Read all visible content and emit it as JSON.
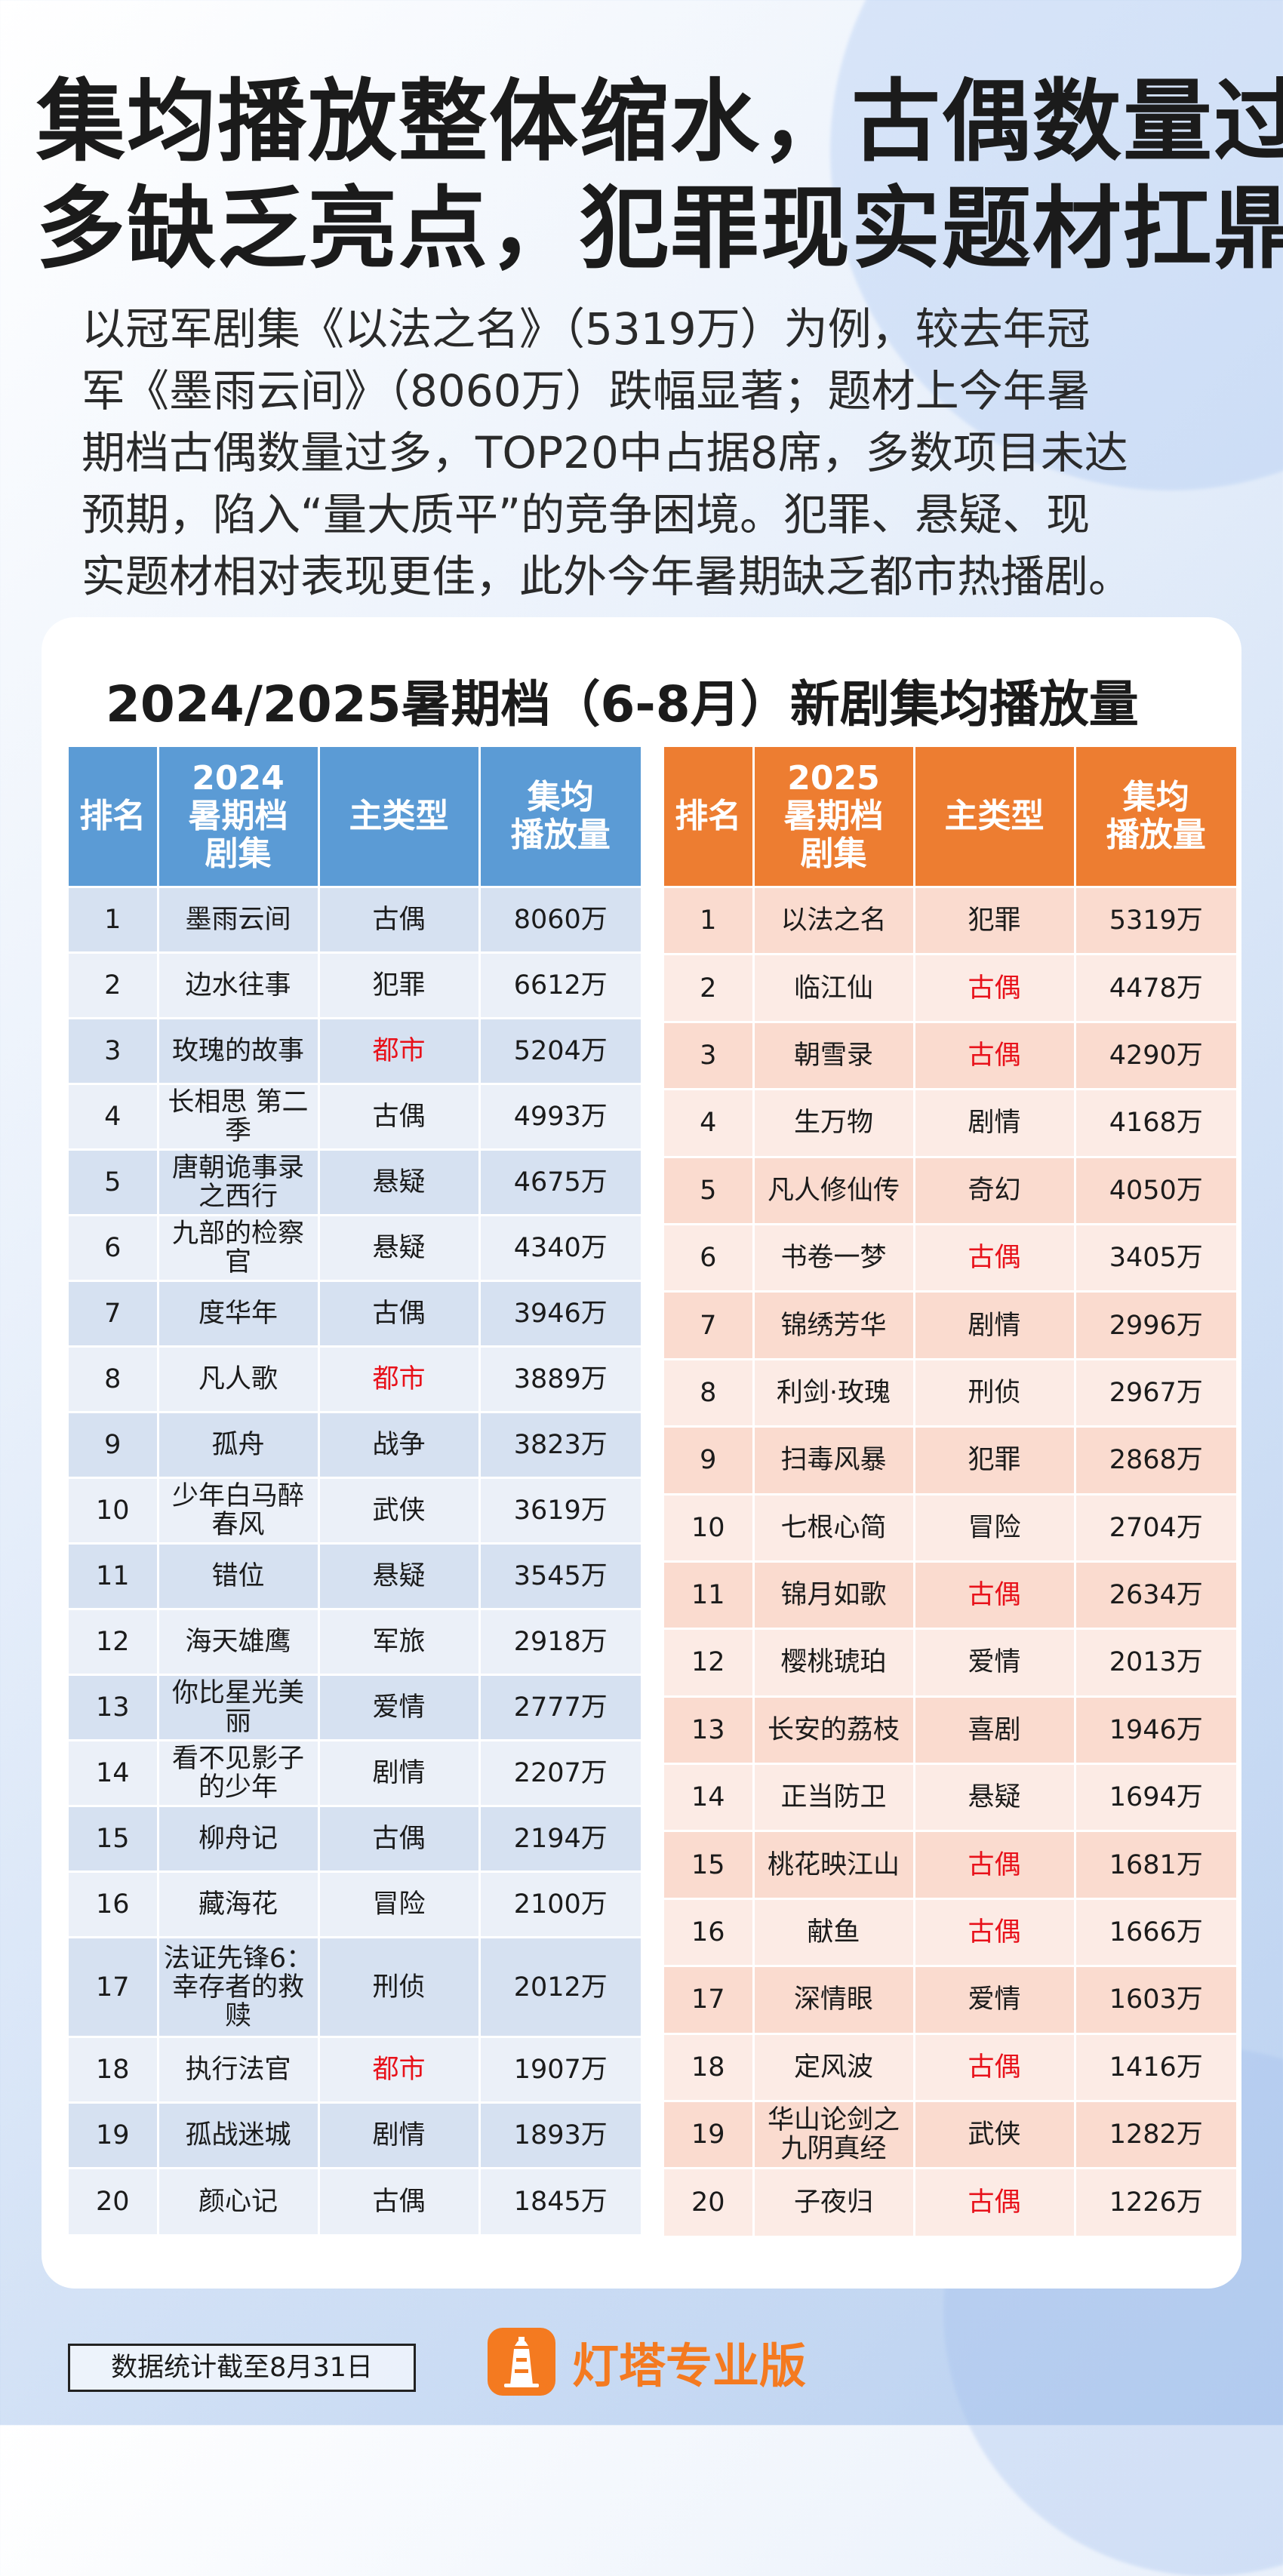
{
  "headline": [
    "集均播放整体缩水，古偶数量过",
    "多缺乏亮点，犯罪现实题材扛鼎"
  ],
  "intro": [
    "以冠军剧集《以法之名》（5319万）为例，较去年冠",
    "军《墨雨云间》（8060万）跌幅显著；题材上今年暑",
    "期档古偶数量过多，TOP20中占据8席，多数项目未达",
    "预期，陷入“量大质平”的竞争困境。犯罪、悬疑、现",
    "实题材相对表现更佳，此外今年暑期缺乏都市热播剧。"
  ],
  "card_title": "2024/2025暑期档（6-8月）新剧集均播放量",
  "colors": {
    "blue_header": "#5b9bd5",
    "orange_header": "#ed7d31",
    "highlight_red": "#e8111a",
    "brand_orange": "#f47a20"
  },
  "table_2024": {
    "headers": [
      "排名",
      "2024\n暑期档\n剧集",
      "主类型",
      "集均\n播放量"
    ],
    "rows": [
      {
        "rank": "1",
        "title": "墨雨云间",
        "genre": "古偶",
        "views": "8060万",
        "highlight": false
      },
      {
        "rank": "2",
        "title": "边水往事",
        "genre": "犯罪",
        "views": "6612万",
        "highlight": false
      },
      {
        "rank": "3",
        "title": "玫瑰的故事",
        "genre": "都市",
        "views": "5204万",
        "highlight": true
      },
      {
        "rank": "4",
        "title": "长相思 第二\n季",
        "genre": "古偶",
        "views": "4993万",
        "highlight": false
      },
      {
        "rank": "5",
        "title": "唐朝诡事录\n之西行",
        "genre": "悬疑",
        "views": "4675万",
        "highlight": false
      },
      {
        "rank": "6",
        "title": "九部的检察\n官",
        "genre": "悬疑",
        "views": "4340万",
        "highlight": false
      },
      {
        "rank": "7",
        "title": "度华年",
        "genre": "古偶",
        "views": "3946万",
        "highlight": false
      },
      {
        "rank": "8",
        "title": "凡人歌",
        "genre": "都市",
        "views": "3889万",
        "highlight": true
      },
      {
        "rank": "9",
        "title": "孤舟",
        "genre": "战争",
        "views": "3823万",
        "highlight": false
      },
      {
        "rank": "10",
        "title": "少年白马醉\n春风",
        "genre": "武侠",
        "views": "3619万",
        "highlight": false
      },
      {
        "rank": "11",
        "title": "错位",
        "genre": "悬疑",
        "views": "3545万",
        "highlight": false
      },
      {
        "rank": "12",
        "title": "海天雄鹰",
        "genre": "军旅",
        "views": "2918万",
        "highlight": false
      },
      {
        "rank": "13",
        "title": "你比星光美\n丽",
        "genre": "爱情",
        "views": "2777万",
        "highlight": false
      },
      {
        "rank": "14",
        "title": "看不见影子\n的少年",
        "genre": "剧情",
        "views": "2207万",
        "highlight": false
      },
      {
        "rank": "15",
        "title": "柳舟记",
        "genre": "古偶",
        "views": "2194万",
        "highlight": false
      },
      {
        "rank": "16",
        "title": "藏海花",
        "genre": "冒险",
        "views": "2100万",
        "highlight": false
      },
      {
        "rank": "17",
        "title": "法证先锋6：\n幸存者的救\n赎",
        "genre": "刑侦",
        "views": "2012万",
        "highlight": false,
        "tall": true
      },
      {
        "rank": "18",
        "title": "执行法官",
        "genre": "都市",
        "views": "1907万",
        "highlight": true
      },
      {
        "rank": "19",
        "title": "孤战迷城",
        "genre": "剧情",
        "views": "1893万",
        "highlight": false
      },
      {
        "rank": "20",
        "title": "颜心记",
        "genre": "古偶",
        "views": "1845万",
        "highlight": false
      }
    ]
  },
  "table_2025": {
    "headers": [
      "排名",
      "2025\n暑期档\n剧集",
      "主类型",
      "集均\n播放量"
    ],
    "rows": [
      {
        "rank": "1",
        "title": "以法之名",
        "genre": "犯罪",
        "views": "5319万",
        "highlight": false
      },
      {
        "rank": "2",
        "title": "临江仙",
        "genre": "古偶",
        "views": "4478万",
        "highlight": true
      },
      {
        "rank": "3",
        "title": "朝雪录",
        "genre": "古偶",
        "views": "4290万",
        "highlight": true
      },
      {
        "rank": "4",
        "title": "生万物",
        "genre": "剧情",
        "views": "4168万",
        "highlight": false
      },
      {
        "rank": "5",
        "title": "凡人修仙传",
        "genre": "奇幻",
        "views": "4050万",
        "highlight": false
      },
      {
        "rank": "6",
        "title": "书卷一梦",
        "genre": "古偶",
        "views": "3405万",
        "highlight": true
      },
      {
        "rank": "7",
        "title": "锦绣芳华",
        "genre": "剧情",
        "views": "2996万",
        "highlight": false
      },
      {
        "rank": "8",
        "title": "利剑·玫瑰",
        "genre": "刑侦",
        "views": "2967万",
        "highlight": false
      },
      {
        "rank": "9",
        "title": "扫毒风暴",
        "genre": "犯罪",
        "views": "2868万",
        "highlight": false
      },
      {
        "rank": "10",
        "title": "七根心简",
        "genre": "冒险",
        "views": "2704万",
        "highlight": false
      },
      {
        "rank": "11",
        "title": "锦月如歌",
        "genre": "古偶",
        "views": "2634万",
        "highlight": true
      },
      {
        "rank": "12",
        "title": "樱桃琥珀",
        "genre": "爱情",
        "views": "2013万",
        "highlight": false
      },
      {
        "rank": "13",
        "title": "长安的荔枝",
        "genre": "喜剧",
        "views": "1946万",
        "highlight": false
      },
      {
        "rank": "14",
        "title": "正当防卫",
        "genre": "悬疑",
        "views": "1694万",
        "highlight": false
      },
      {
        "rank": "15",
        "title": "桃花映江山",
        "genre": "古偶",
        "views": "1681万",
        "highlight": true
      },
      {
        "rank": "16",
        "title": "献鱼",
        "genre": "古偶",
        "views": "1666万",
        "highlight": true
      },
      {
        "rank": "17",
        "title": "深情眼",
        "genre": "爱情",
        "views": "1603万",
        "highlight": false
      },
      {
        "rank": "18",
        "title": "定风波",
        "genre": "古偶",
        "views": "1416万",
        "highlight": true
      },
      {
        "rank": "19",
        "title": "华山论剑之\n九阴真经",
        "genre": "武侠",
        "views": "1282万",
        "highlight": false
      },
      {
        "rank": "20",
        "title": "子夜归",
        "genre": "古偶",
        "views": "1226万",
        "highlight": true
      }
    ]
  },
  "footer": {
    "note": "数据统计截至8月31日",
    "brand": "灯塔专业版",
    "brand_icon": "lighthouse-icon"
  }
}
